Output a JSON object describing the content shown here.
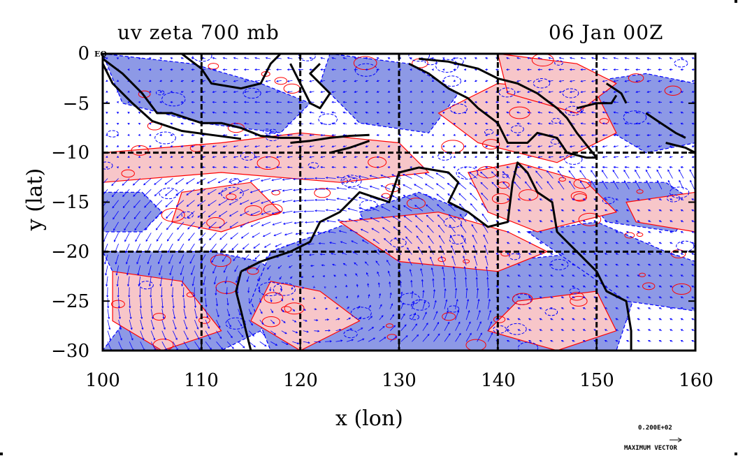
{
  "title": {
    "left": "uv zeta 700 mb",
    "right": "06 Jan 00Z"
  },
  "axes": {
    "xlabel": "x (lon)",
    "ylabel": "y (lat)",
    "x_range": [
      100,
      160
    ],
    "y_range": [
      -30,
      0
    ],
    "x_ticks": [
      "100",
      "110",
      "120",
      "130",
      "140",
      "150",
      "160"
    ],
    "y_ticks": [
      "0",
      "−5",
      "−10",
      "−15",
      "−20",
      "−25",
      "−30"
    ],
    "eq_label": "EQ"
  },
  "legend": {
    "vector_value": "0.200E+02",
    "vector_caption": "MAXIMUM VECTOR"
  },
  "colors": {
    "positive_fill": "#f7c6c9",
    "positive_line": "#ff0000",
    "negative_fill": "#8d99e6",
    "negative_line": "#0000ff",
    "vector": "#0000ff",
    "coast": "#000000",
    "grid": "#000000"
  }
}
